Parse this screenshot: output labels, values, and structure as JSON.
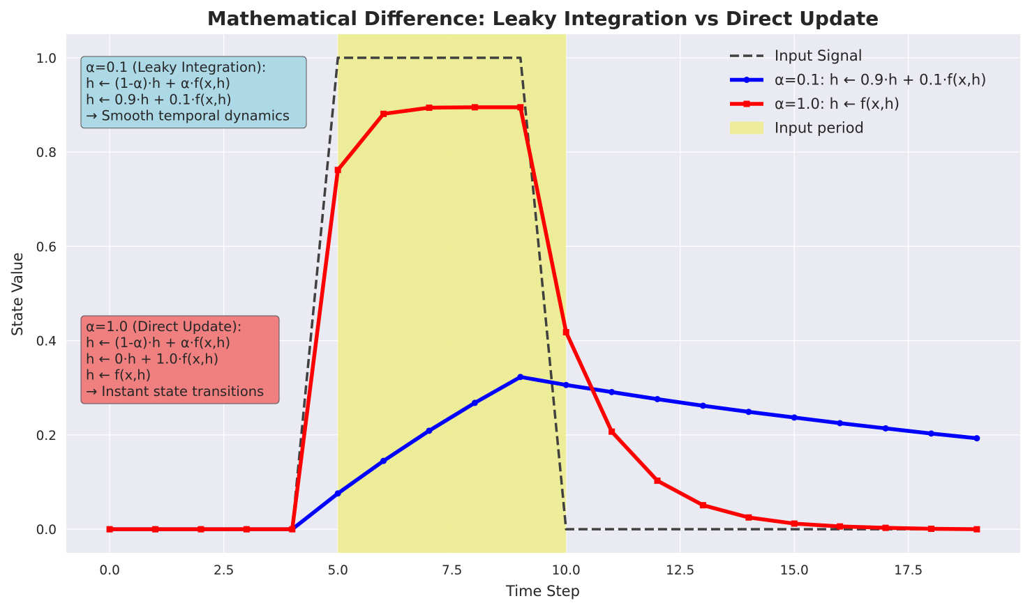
{
  "chart_data": {
    "type": "line",
    "title": "Mathematical Difference: Leaky Integration vs Direct Update",
    "xlabel": "Time Step",
    "ylabel": "State Value",
    "xlim": [
      -0.95,
      19.95
    ],
    "ylim": [
      -0.05,
      1.05
    ],
    "xticks": [
      "0.0",
      "2.5",
      "5.0",
      "7.5",
      "10.0",
      "12.5",
      "15.0",
      "17.5"
    ],
    "xtick_values": [
      0,
      2.5,
      5,
      7.5,
      10,
      12.5,
      15,
      17.5
    ],
    "yticks": [
      "0.0",
      "0.2",
      "0.4",
      "0.6",
      "0.8",
      "1.0"
    ],
    "ytick_values": [
      0,
      0.2,
      0.4,
      0.6,
      0.8,
      1.0
    ],
    "grid": true,
    "legend_position": "top-right",
    "x": [
      0,
      1,
      2,
      3,
      4,
      5,
      6,
      7,
      8,
      9,
      10,
      11,
      12,
      13,
      14,
      15,
      16,
      17,
      18,
      19
    ],
    "series": [
      {
        "name": "Input Signal",
        "style": "dashed",
        "color": "#404040",
        "values": [
          0,
          0,
          0,
          0,
          0,
          1,
          1,
          1,
          1,
          1,
          0,
          0,
          0,
          0,
          0,
          0,
          0,
          0,
          0,
          0
        ]
      },
      {
        "name": "α=0.1: h ← 0.9·h + 0.1·f(x,h)",
        "style": "solid",
        "marker": "circle",
        "color": "#0000ff",
        "values": [
          0,
          0,
          0,
          0,
          0,
          0.076,
          0.145,
          0.209,
          0.268,
          0.323,
          0.306,
          0.291,
          0.276,
          0.262,
          0.249,
          0.237,
          0.225,
          0.214,
          0.203,
          0.193
        ]
      },
      {
        "name": "α=1.0: h ← f(x,h)",
        "style": "solid",
        "marker": "square",
        "color": "#ff0000",
        "values": [
          0,
          0,
          0,
          0,
          0,
          0.762,
          0.881,
          0.894,
          0.895,
          0.895,
          0.418,
          0.207,
          0.103,
          0.051,
          0.025,
          0.012,
          0.006,
          0.003,
          0.001,
          0.0
        ]
      }
    ],
    "shaded_region": {
      "name": "Input period",
      "x_start": 5,
      "x_end": 10,
      "color": "#eded8a"
    },
    "annotations": [
      {
        "id": "leaky",
        "lines": [
          "α=0.1 (Leaky Integration):",
          "h ← (1-α)·h + α·f(x,h)",
          "h ← 0.9·h + 0.1·f(x,h)",
          "→ Smooth temporal dynamics"
        ],
        "background": "#add8e6"
      },
      {
        "id": "direct",
        "lines": [
          "α=1.0 (Direct Update):",
          "h ← (1-α)·h + α·f(x,h)",
          "h ← 0·h + 1.0·f(x,h)",
          "h ← f(x,h)",
          "→ Instant state transitions"
        ],
        "background": "#f08080"
      }
    ],
    "colors": {
      "plot_background": "#eaeaf2",
      "grid": "#ffffff",
      "text": "#262626"
    }
  }
}
